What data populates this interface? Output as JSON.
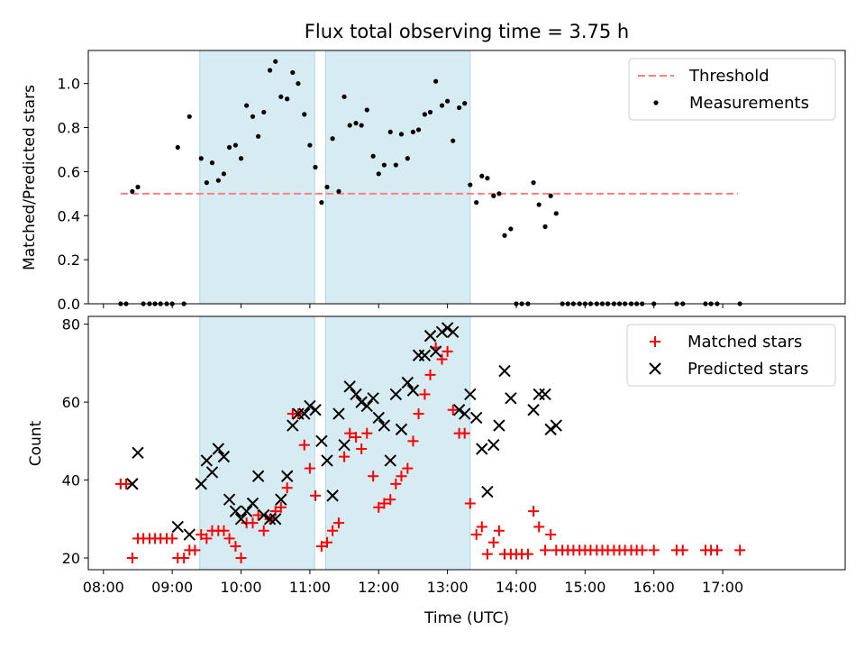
{
  "title": "Flux total observing time = 3.75 h",
  "xlabel": "Time (UTC)",
  "x_ticks": [
    "08:00",
    "09:00",
    "10:00",
    "11:00",
    "12:00",
    "13:00",
    "14:00",
    "15:00",
    "16:00",
    "17:00"
  ],
  "chart_data": [
    {
      "type": "scatter",
      "ylabel": "Matched/Predicted stars",
      "ylim": [
        0,
        1.15
      ],
      "y_ticks": [
        "0.0",
        "0.2",
        "0.4",
        "0.6",
        "0.8",
        "1.0"
      ],
      "xlim_hours": [
        7.78,
        18.78
      ],
      "shaded_regions": [
        [
          9.4,
          11.07
        ],
        [
          11.23,
          13.33
        ]
      ],
      "legend": [
        "Threshold",
        "Measurements"
      ],
      "threshold": {
        "name": "Threshold",
        "value": 0.5,
        "x_range": [
          8.25,
          17.22
        ],
        "color": "#ff7f7f"
      },
      "series": [
        {
          "name": "Measurements",
          "color": "#000000",
          "points": [
            [
              8.25,
              0
            ],
            [
              8.33,
              0
            ],
            [
              8.42,
              0.51
            ],
            [
              8.5,
              0.53
            ],
            [
              8.58,
              0
            ],
            [
              8.67,
              0
            ],
            [
              8.75,
              0
            ],
            [
              8.83,
              0
            ],
            [
              8.92,
              0
            ],
            [
              9.0,
              0
            ],
            [
              9.08,
              0.71
            ],
            [
              9.17,
              0
            ],
            [
              9.25,
              0.85
            ],
            [
              9.42,
              0.66
            ],
            [
              9.5,
              0.55
            ],
            [
              9.58,
              0.64
            ],
            [
              9.67,
              0.56
            ],
            [
              9.75,
              0.59
            ],
            [
              9.83,
              0.71
            ],
            [
              9.92,
              0.72
            ],
            [
              10.0,
              0.66
            ],
            [
              10.08,
              0.9
            ],
            [
              10.17,
              0.85
            ],
            [
              10.25,
              0.76
            ],
            [
              10.33,
              0.87
            ],
            [
              10.42,
              1.06
            ],
            [
              10.5,
              1.1
            ],
            [
              10.58,
              0.94
            ],
            [
              10.67,
              0.93
            ],
            [
              10.75,
              1.05
            ],
            [
              10.83,
              1.0
            ],
            [
              10.92,
              0.86
            ],
            [
              11.0,
              0.72
            ],
            [
              11.08,
              0.62
            ],
            [
              11.17,
              0.46
            ],
            [
              11.25,
              0.53
            ],
            [
              11.33,
              0.75
            ],
            [
              11.42,
              0.51
            ],
            [
              11.5,
              0.94
            ],
            [
              11.58,
              0.81
            ],
            [
              11.67,
              0.82
            ],
            [
              11.75,
              0.81
            ],
            [
              11.83,
              0.88
            ],
            [
              11.92,
              0.67
            ],
            [
              12.0,
              0.59
            ],
            [
              12.08,
              0.63
            ],
            [
              12.17,
              0.78
            ],
            [
              12.25,
              0.63
            ],
            [
              12.33,
              0.77
            ],
            [
              12.42,
              0.66
            ],
            [
              12.5,
              0.78
            ],
            [
              12.58,
              0.79
            ],
            [
              12.67,
              0.86
            ],
            [
              12.75,
              0.87
            ],
            [
              12.83,
              1.01
            ],
            [
              12.92,
              0.9
            ],
            [
              13.0,
              0.92
            ],
            [
              13.08,
              0.74
            ],
            [
              13.17,
              0.89
            ],
            [
              13.25,
              0.91
            ],
            [
              13.33,
              0.54
            ],
            [
              13.42,
              0.46
            ],
            [
              13.5,
              0.58
            ],
            [
              13.58,
              0.57
            ],
            [
              13.67,
              0.49
            ],
            [
              13.75,
              0.5
            ],
            [
              13.83,
              0.31
            ],
            [
              13.92,
              0.34
            ],
            [
              14.0,
              0
            ],
            [
              14.08,
              0
            ],
            [
              14.17,
              0
            ],
            [
              14.25,
              0.55
            ],
            [
              14.33,
              0.45
            ],
            [
              14.42,
              0.35
            ],
            [
              14.5,
              0.49
            ],
            [
              14.58,
              0.41
            ],
            [
              14.67,
              0
            ],
            [
              14.75,
              0
            ],
            [
              14.83,
              0
            ],
            [
              14.92,
              0
            ],
            [
              15.0,
              0
            ],
            [
              15.08,
              0
            ],
            [
              15.17,
              0
            ],
            [
              15.25,
              0
            ],
            [
              15.33,
              0
            ],
            [
              15.42,
              0
            ],
            [
              15.5,
              0
            ],
            [
              15.58,
              0
            ],
            [
              15.67,
              0
            ],
            [
              15.75,
              0
            ],
            [
              15.83,
              0
            ],
            [
              16.0,
              0
            ],
            [
              16.33,
              0
            ],
            [
              16.42,
              0
            ],
            [
              16.75,
              0
            ],
            [
              16.83,
              0
            ],
            [
              16.92,
              0
            ],
            [
              17.25,
              0
            ]
          ]
        }
      ]
    },
    {
      "type": "scatter",
      "ylabel": "Count",
      "ylim": [
        17,
        82
      ],
      "y_ticks": [
        "20",
        "40",
        "60",
        "80"
      ],
      "xlim_hours": [
        7.78,
        18.78
      ],
      "shaded_regions": [
        [
          9.4,
          11.07
        ],
        [
          11.23,
          13.33
        ]
      ],
      "legend": [
        "Matched stars",
        "Predicted stars"
      ],
      "series": [
        {
          "name": "Matched stars",
          "marker": "plus",
          "color": "#ff0000",
          "points": [
            [
              8.25,
              39
            ],
            [
              8.33,
              39
            ],
            [
              8.42,
              20
            ],
            [
              8.5,
              25
            ],
            [
              8.58,
              25
            ],
            [
              8.67,
              25
            ],
            [
              8.75,
              25
            ],
            [
              8.83,
              25
            ],
            [
              8.92,
              25
            ],
            [
              9.0,
              25
            ],
            [
              9.08,
              20
            ],
            [
              9.17,
              20
            ],
            [
              9.25,
              22
            ],
            [
              9.33,
              22
            ],
            [
              9.42,
              26
            ],
            [
              9.5,
              25
            ],
            [
              9.58,
              27
            ],
            [
              9.67,
              27
            ],
            [
              9.75,
              27
            ],
            [
              9.83,
              25
            ],
            [
              9.92,
              23
            ],
            [
              10.0,
              20
            ],
            [
              10.08,
              29
            ],
            [
              10.17,
              29
            ],
            [
              10.25,
              31
            ],
            [
              10.33,
              27
            ],
            [
              10.42,
              30
            ],
            [
              10.5,
              32
            ],
            [
              10.58,
              33
            ],
            [
              10.67,
              38
            ],
            [
              10.75,
              57
            ],
            [
              10.83,
              57
            ],
            [
              10.92,
              49
            ],
            [
              11.0,
              43
            ],
            [
              11.08,
              36
            ],
            [
              11.17,
              23
            ],
            [
              11.25,
              24
            ],
            [
              11.33,
              27
            ],
            [
              11.42,
              29
            ],
            [
              11.5,
              46
            ],
            [
              11.58,
              52
            ],
            [
              11.67,
              51
            ],
            [
              11.75,
              48
            ],
            [
              11.83,
              52
            ],
            [
              11.92,
              41
            ],
            [
              12.0,
              33
            ],
            [
              12.08,
              34
            ],
            [
              12.17,
              35
            ],
            [
              12.25,
              39
            ],
            [
              12.33,
              41
            ],
            [
              12.42,
              43
            ],
            [
              12.5,
              50
            ],
            [
              12.58,
              57
            ],
            [
              12.67,
              62
            ],
            [
              12.75,
              67
            ],
            [
              12.83,
              74
            ],
            [
              12.92,
              71
            ],
            [
              13.0,
              73
            ],
            [
              13.08,
              58
            ],
            [
              13.17,
              52
            ],
            [
              13.25,
              52
            ],
            [
              13.33,
              34
            ],
            [
              13.42,
              26
            ],
            [
              13.5,
              28
            ],
            [
              13.58,
              21
            ],
            [
              13.67,
              24
            ],
            [
              13.75,
              27
            ],
            [
              13.83,
              21
            ],
            [
              13.92,
              21
            ],
            [
              14.0,
              21
            ],
            [
              14.08,
              21
            ],
            [
              14.17,
              21
            ],
            [
              14.25,
              32
            ],
            [
              14.33,
              28
            ],
            [
              14.42,
              22
            ],
            [
              14.5,
              26
            ],
            [
              14.58,
              22
            ],
            [
              14.67,
              22
            ],
            [
              14.75,
              22
            ],
            [
              14.83,
              22
            ],
            [
              14.92,
              22
            ],
            [
              15.0,
              22
            ],
            [
              15.08,
              22
            ],
            [
              15.17,
              22
            ],
            [
              15.25,
              22
            ],
            [
              15.33,
              22
            ],
            [
              15.42,
              22
            ],
            [
              15.5,
              22
            ],
            [
              15.58,
              22
            ],
            [
              15.67,
              22
            ],
            [
              15.75,
              22
            ],
            [
              15.83,
              22
            ],
            [
              16.0,
              22
            ],
            [
              16.33,
              22
            ],
            [
              16.42,
              22
            ],
            [
              16.75,
              22
            ],
            [
              16.83,
              22
            ],
            [
              16.92,
              22
            ],
            [
              17.25,
              22
            ]
          ]
        },
        {
          "name": "Predicted stars",
          "marker": "x",
          "color": "#000000",
          "points": [
            [
              8.42,
              39
            ],
            [
              8.5,
              47
            ],
            [
              9.08,
              28
            ],
            [
              9.25,
              26
            ],
            [
              9.42,
              39
            ],
            [
              9.5,
              45
            ],
            [
              9.58,
              42
            ],
            [
              9.67,
              48
            ],
            [
              9.75,
              46
            ],
            [
              9.83,
              35
            ],
            [
              9.92,
              32
            ],
            [
              10.0,
              30
            ],
            [
              10.08,
              32
            ],
            [
              10.17,
              34
            ],
            [
              10.25,
              41
            ],
            [
              10.33,
              31
            ],
            [
              10.42,
              30
            ],
            [
              10.5,
              30
            ],
            [
              10.58,
              35
            ],
            [
              10.67,
              41
            ],
            [
              10.75,
              54
            ],
            [
              10.83,
              57
            ],
            [
              10.92,
              57
            ],
            [
              11.0,
              59
            ],
            [
              11.08,
              58
            ],
            [
              11.17,
              50
            ],
            [
              11.25,
              45
            ],
            [
              11.33,
              36
            ],
            [
              11.42,
              57
            ],
            [
              11.5,
              49
            ],
            [
              11.58,
              64
            ],
            [
              11.67,
              62
            ],
            [
              11.75,
              60
            ],
            [
              11.83,
              59
            ],
            [
              11.92,
              61
            ],
            [
              12.0,
              56
            ],
            [
              12.08,
              54
            ],
            [
              12.17,
              45
            ],
            [
              12.25,
              62
            ],
            [
              12.33,
              53
            ],
            [
              12.42,
              65
            ],
            [
              12.5,
              63
            ],
            [
              12.58,
              72
            ],
            [
              12.67,
              72
            ],
            [
              12.75,
              77
            ],
            [
              12.83,
              73
            ],
            [
              12.92,
              78
            ],
            [
              13.0,
              79
            ],
            [
              13.08,
              78
            ],
            [
              13.17,
              58
            ],
            [
              13.25,
              57
            ],
            [
              13.33,
              62
            ],
            [
              13.42,
              56
            ],
            [
              13.5,
              48
            ],
            [
              13.58,
              37
            ],
            [
              13.67,
              49
            ],
            [
              13.75,
              54
            ],
            [
              13.83,
              68
            ],
            [
              13.92,
              61
            ],
            [
              14.25,
              58
            ],
            [
              14.33,
              62
            ],
            [
              14.42,
              62
            ],
            [
              14.5,
              53
            ],
            [
              14.58,
              54
            ]
          ]
        }
      ]
    }
  ]
}
